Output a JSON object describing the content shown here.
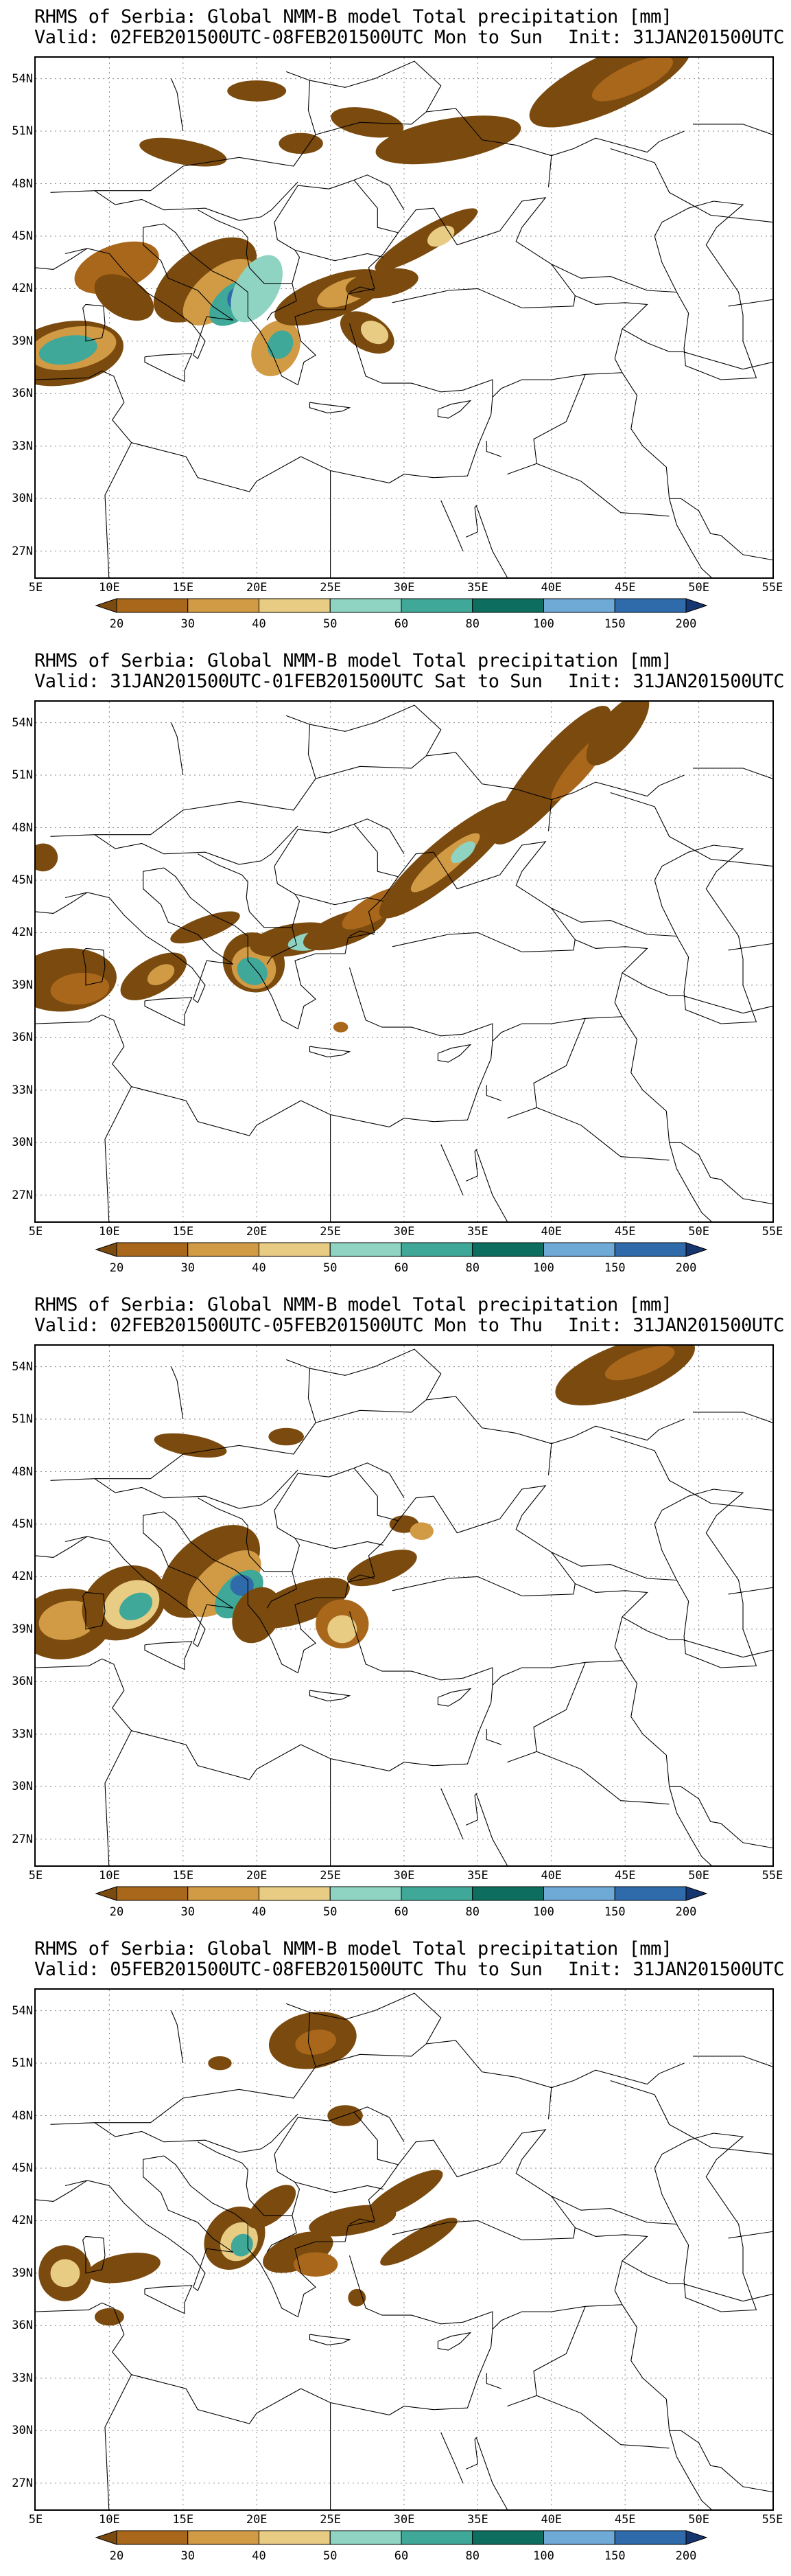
{
  "panels": [
    {
      "title": "RHMS of Serbia: Global NMM-B model Total precipitation [mm]",
      "valid": "Valid: 02FEB201500UTC-08FEB201500UTC Mon to Sun",
      "init": "Init: 31JAN201500UTC"
    },
    {
      "title": "RHMS of Serbia: Global NMM-B model Total precipitation [mm]",
      "valid": "Valid: 31JAN201500UTC-01FEB201500UTC Sat to Sun",
      "init": "Init: 31JAN201500UTC"
    },
    {
      "title": "RHMS of Serbia: Global NMM-B model Total precipitation [mm]",
      "valid": "Valid: 02FEB201500UTC-05FEB201500UTC Mon to Thu",
      "init": "Init: 31JAN201500UTC"
    },
    {
      "title": "RHMS of Serbia: Global NMM-B model Total precipitation [mm]",
      "valid": "Valid: 05FEB201500UTC-08FEB201500UTC Thu to Sun",
      "init": "Init: 31JAN201500UTC"
    }
  ],
  "lat_labels": [
    "54N",
    "51N",
    "48N",
    "45N",
    "42N",
    "39N",
    "36N",
    "33N",
    "30N",
    "27N"
  ],
  "lon_labels": [
    "5E",
    "10E",
    "15E",
    "20E",
    "25E",
    "30E",
    "35E",
    "40E",
    "45E",
    "50E",
    "55E"
  ],
  "colorbar": {
    "labels": [
      "20",
      "30",
      "40",
      "50",
      "60",
      "80",
      "100",
      "150",
      "200"
    ],
    "colors": [
      "#7a4a0e",
      "#a9671c",
      "#d19a45",
      "#e8cc84",
      "#8fd4c3",
      "#3fa898",
      "#0d6e5f",
      "#6fa9d6",
      "#2f6aaa",
      "#17356f"
    ]
  }
}
